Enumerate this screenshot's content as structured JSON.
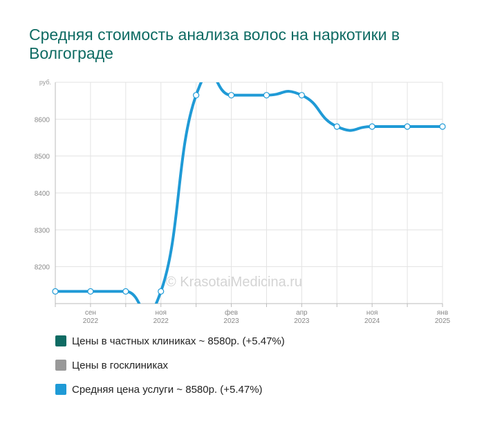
{
  "title": "Средняя стоимость анализа волос на наркотики в Волгограде",
  "watermark": "© KrasotaiMedicina.ru",
  "legend": [
    {
      "label": "Цены в частных клиниках ~ 8580р. (+5.47%)",
      "color": "#0e6b63"
    },
    {
      "label": "Цены в госклиниках",
      "color": "#999999"
    },
    {
      "label": "Средняя цена услуги ~ 8580р. (+5.47%)",
      "color": "#1f9ad6"
    }
  ],
  "chart_data": {
    "type": "line",
    "y_unit_label": "руб.",
    "ylim": [
      8100,
      8700
    ],
    "y_ticks": [
      "8200",
      "8300",
      "8400",
      "8500",
      "8600"
    ],
    "x_ticks": [
      {
        "month": "сен",
        "year": "2022"
      },
      {
        "month": "ноя",
        "year": "2022"
      },
      {
        "month": "фев",
        "year": "2023"
      },
      {
        "month": "апр",
        "year": "2023"
      },
      {
        "month": "ноя",
        "year": "2024"
      },
      {
        "month": "янв",
        "year": "2025"
      }
    ],
    "grid": true,
    "series": [
      {
        "name": "Средняя цена услуги",
        "color": "#1f9ad6",
        "points": [
          {
            "x": 0,
            "y": 8133
          },
          {
            "x": 1,
            "y": 8133
          },
          {
            "x": 2,
            "y": 8133
          },
          {
            "x": 3,
            "y": 8133
          },
          {
            "x": 4,
            "y": 8665
          },
          {
            "x": 5,
            "y": 8665
          },
          {
            "x": 6,
            "y": 8665
          },
          {
            "x": 7,
            "y": 8665
          },
          {
            "x": 8,
            "y": 8580
          },
          {
            "x": 9,
            "y": 8580
          },
          {
            "x": 10,
            "y": 8580
          },
          {
            "x": 11,
            "y": 8580
          }
        ]
      }
    ]
  }
}
